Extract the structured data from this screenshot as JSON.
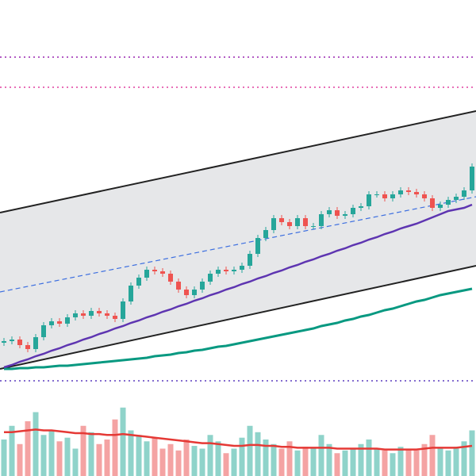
{
  "chart_data": {
    "type": "candlestick",
    "ylim": [
      130,
      600
    ],
    "open": [
      168,
      170,
      172,
      165,
      160,
      175,
      190,
      195,
      192,
      200,
      205,
      202,
      208,
      205,
      202,
      198,
      220,
      240,
      250,
      260,
      258,
      255,
      245,
      235,
      228,
      235,
      245,
      255,
      260,
      258,
      260,
      265,
      280,
      300,
      310,
      325,
      320,
      315,
      325,
      315,
      315,
      330,
      335,
      328,
      330,
      338,
      340,
      355,
      355,
      350,
      355,
      360,
      358,
      355,
      350,
      338,
      342,
      348,
      352,
      360
    ],
    "high": [
      174,
      176,
      176,
      169,
      179,
      194,
      199,
      199,
      204,
      209,
      209,
      212,
      212,
      209,
      206,
      224,
      244,
      254,
      264,
      264,
      262,
      259,
      249,
      239,
      239,
      249,
      259,
      264,
      264,
      264,
      269,
      284,
      304,
      314,
      329,
      329,
      324,
      329,
      329,
      319,
      334,
      339,
      339,
      334,
      342,
      344,
      359,
      359,
      359,
      359,
      364,
      364,
      362,
      359,
      354,
      346,
      352,
      356,
      364,
      394
    ],
    "low": [
      164,
      166,
      161,
      156,
      156,
      171,
      186,
      188,
      188,
      196,
      198,
      198,
      201,
      198,
      194,
      194,
      216,
      236,
      246,
      254,
      251,
      241,
      231,
      224,
      224,
      231,
      241,
      251,
      254,
      254,
      256,
      261,
      276,
      296,
      306,
      316,
      311,
      311,
      311,
      311,
      311,
      326,
      324,
      324,
      326,
      334,
      336,
      351,
      346,
      346,
      351,
      354,
      351,
      346,
      334,
      334,
      338,
      344,
      348,
      356
    ],
    "close": [
      170,
      172,
      165,
      160,
      175,
      190,
      195,
      192,
      200,
      205,
      202,
      208,
      205,
      202,
      198,
      220,
      240,
      250,
      260,
      258,
      255,
      245,
      235,
      228,
      235,
      245,
      255,
      260,
      258,
      260,
      265,
      280,
      300,
      310,
      325,
      320,
      315,
      325,
      315,
      315,
      330,
      335,
      328,
      330,
      338,
      340,
      355,
      355,
      350,
      355,
      360,
      358,
      355,
      350,
      338,
      342,
      348,
      352,
      360,
      390
    ],
    "up_color": "#26a69a",
    "down_color": "#ef5350",
    "channel": {
      "upper": [
        332,
        460
      ],
      "lower": [
        135,
        265
      ],
      "color": "#222222",
      "fill": "#e6e7e9"
    },
    "trend_line": {
      "values": [
        232,
        352
      ],
      "color": "#3d6fe0"
    },
    "levels": [
      {
        "value": 528,
        "color": "#9c27b0"
      },
      {
        "value": 490,
        "color": "#e040a0"
      }
    ],
    "ma_slow": {
      "color": "#5e35b1",
      "values": [
        137,
        140,
        144,
        147,
        151,
        154,
        158,
        161,
        165,
        168,
        172,
        175,
        179,
        182,
        186,
        189,
        193,
        196,
        200,
        203,
        207,
        210,
        214,
        217,
        221,
        224,
        228,
        231,
        235,
        238,
        242,
        245,
        249,
        252,
        256,
        259,
        263,
        266,
        270,
        273,
        277,
        280,
        284,
        287,
        291,
        294,
        298,
        301,
        305,
        308,
        312,
        315,
        318,
        322,
        326,
        330,
        334,
        336,
        338,
        342
      ]
    },
    "ma_long": {
      "color": "#089981",
      "values": [
        135,
        135,
        136,
        136,
        137,
        137,
        138,
        139,
        139,
        140,
        141,
        142,
        143,
        144,
        145,
        146,
        147,
        148,
        149,
        151,
        152,
        153,
        155,
        156,
        158,
        159,
        161,
        163,
        164,
        166,
        168,
        170,
        172,
        174,
        176,
        178,
        180,
        182,
        184,
        186,
        189,
        191,
        193,
        196,
        198,
        201,
        203,
        206,
        209,
        211,
        214,
        217,
        220,
        222,
        225,
        228,
        230,
        232,
        234,
        236
      ]
    },
    "volume": {
      "ylim": [
        0,
        100
      ],
      "up_color": "#8fd3ca",
      "down_color": "#f4a3a3",
      "values": [
        40,
        55,
        35,
        60,
        70,
        45,
        50,
        38,
        42,
        30,
        55,
        48,
        35,
        40,
        62,
        75,
        50,
        45,
        38,
        42,
        30,
        35,
        28,
        40,
        33,
        30,
        45,
        38,
        25,
        30,
        42,
        55,
        48,
        40,
        35,
        30,
        38,
        28,
        32,
        30,
        45,
        35,
        25,
        28,
        30,
        35,
        40,
        30,
        28,
        25,
        32,
        30,
        28,
        35,
        45,
        30,
        28,
        32,
        38,
        50
      ],
      "ma": {
        "color": "#e53935",
        "values": [
          48,
          48,
          49,
          50,
          51,
          50,
          50,
          49,
          48,
          47,
          47,
          46,
          46,
          45,
          45,
          46,
          45,
          44,
          43,
          42,
          41,
          40,
          39,
          38,
          37,
          36,
          36,
          35,
          34,
          33,
          33,
          34,
          34,
          33,
          33,
          32,
          32,
          31,
          31,
          31,
          31,
          31,
          30,
          30,
          30,
          30,
          30,
          30,
          29,
          29,
          29,
          29,
          29,
          30,
          31,
          31,
          31,
          31,
          32,
          33
        ]
      }
    }
  }
}
